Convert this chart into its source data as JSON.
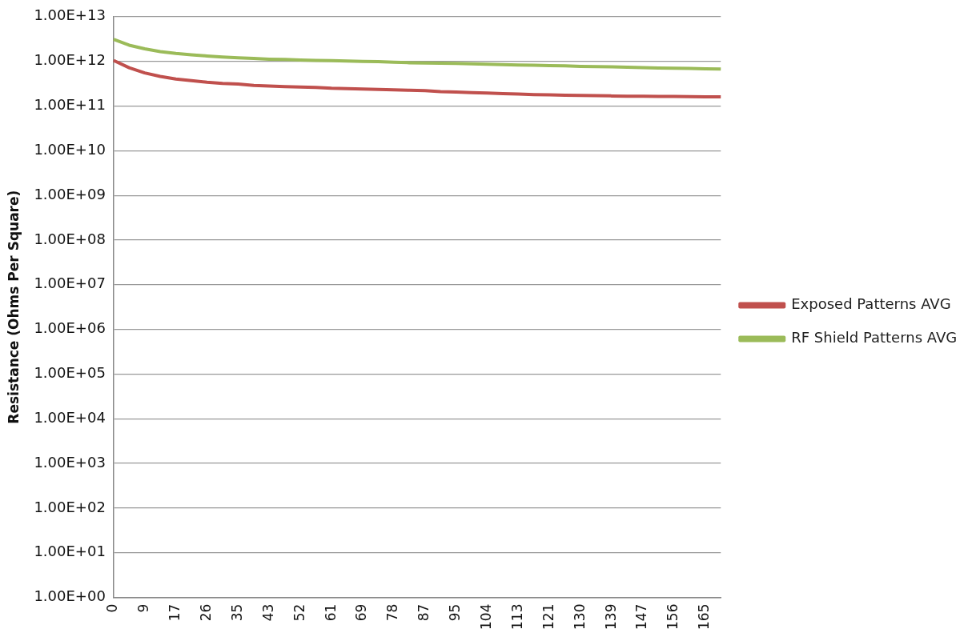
{
  "chart_data": {
    "type": "line",
    "ylabel": "Resistance (Ohms Per Square)",
    "categories": [
      "0",
      null,
      "9",
      null,
      "17",
      null,
      "26",
      null,
      "35",
      null,
      "43",
      null,
      "52",
      null,
      "61",
      null,
      "69",
      null,
      "78",
      null,
      "87",
      null,
      "95",
      null,
      "104",
      null,
      "113",
      null,
      "121",
      null,
      "130",
      null,
      "139",
      null,
      "147",
      null,
      "156",
      null,
      "165",
      null
    ],
    "series": [
      {
        "name": "Exposed Patterns AVG",
        "color": "#c0504d",
        "values": [
          1050000000000.0,
          720000000000.0,
          550000000000.0,
          460000000000.0,
          400000000000.0,
          370000000000.0,
          340000000000.0,
          320000000000.0,
          310000000000.0,
          290000000000.0,
          280000000000.0,
          270000000000.0,
          265000000000.0,
          260000000000.0,
          250000000000.0,
          245000000000.0,
          240000000000.0,
          235000000000.0,
          230000000000.0,
          225000000000.0,
          220000000000.0,
          210000000000.0,
          205000000000.0,
          200000000000.0,
          195000000000.0,
          190000000000.0,
          185000000000.0,
          180000000000.0,
          178000000000.0,
          175000000000.0,
          172000000000.0,
          170000000000.0,
          168000000000.0,
          166000000000.0,
          165000000000.0,
          164000000000.0,
          163000000000.0,
          162000000000.0,
          161000000000.0,
          160000000000.0
        ]
      },
      {
        "name": "RF Shield Patterns AVG",
        "color": "#9bbb59",
        "values": [
          3100000000000.0,
          2300000000000.0,
          1900000000000.0,
          1650000000000.0,
          1500000000000.0,
          1400000000000.0,
          1320000000000.0,
          1250000000000.0,
          1200000000000.0,
          1160000000000.0,
          1120000000000.0,
          1100000000000.0,
          1070000000000.0,
          1050000000000.0,
          1040000000000.0,
          1020000000000.0,
          1000000000000.0,
          980000000000.0,
          950000000000.0,
          930000000000.0,
          920000000000.0,
          910000000000.0,
          900000000000.0,
          880000000000.0,
          860000000000.0,
          840000000000.0,
          830000000000.0,
          820000000000.0,
          800000000000.0,
          790000000000.0,
          770000000000.0,
          760000000000.0,
          750000000000.0,
          740000000000.0,
          720000000000.0,
          710000000000.0,
          700000000000.0,
          690000000000.0,
          680000000000.0,
          670000000000.0
        ]
      }
    ],
    "log": "y",
    "ylim": [
      1,
      10000000000000.0
    ],
    "yticks": [
      {
        "value": 1,
        "label": "1.00E+00"
      },
      {
        "value": 10,
        "label": "1.00E+01"
      },
      {
        "value": 100,
        "label": "1.00E+02"
      },
      {
        "value": 1000,
        "label": "1.00E+03"
      },
      {
        "value": 10000.0,
        "label": "1.00E+04"
      },
      {
        "value": 100000.0,
        "label": "1.00E+05"
      },
      {
        "value": 1000000.0,
        "label": "1.00E+06"
      },
      {
        "value": 10000000.0,
        "label": "1.00E+07"
      },
      {
        "value": 100000000.0,
        "label": "1.00E+08"
      },
      {
        "value": 1000000000.0,
        "label": "1.00E+09"
      },
      {
        "value": 10000000000.0,
        "label": "1.00E+10"
      },
      {
        "value": 100000000000.0,
        "label": "1.00E+11"
      },
      {
        "value": 1000000000000.0,
        "label": "1.00E+12"
      },
      {
        "value": 10000000000000.0,
        "label": "1.00E+13"
      }
    ],
    "grid": "y",
    "legend": "right",
    "marker": "none",
    "line_style": "solid"
  }
}
